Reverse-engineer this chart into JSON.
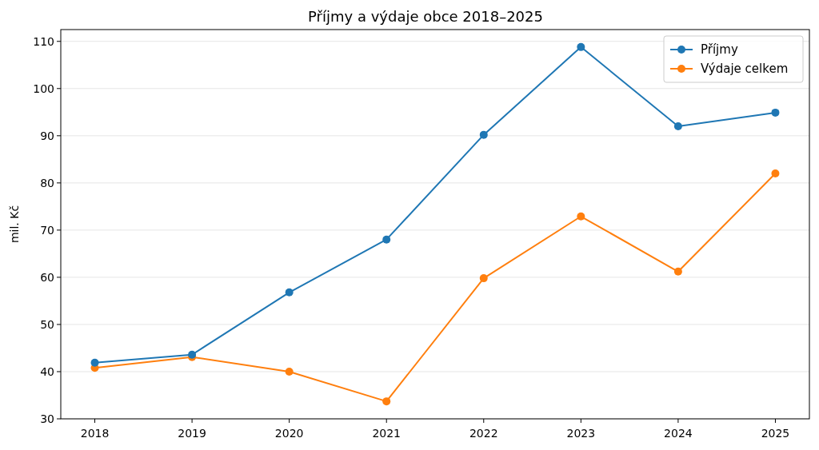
{
  "chart_data": {
    "type": "line",
    "title": "Příjmy a výdaje obce 2018–2025",
    "ylabel": "mil. Kč",
    "categories": [
      "2018",
      "2019",
      "2020",
      "2021",
      "2022",
      "2023",
      "2024",
      "2025"
    ],
    "series": [
      {
        "name": "Příjmy",
        "color": "#1f77b4",
        "values": [
          41.9,
          43.6,
          56.8,
          68.0,
          90.2,
          108.8,
          92.0,
          94.9
        ]
      },
      {
        "name": "Výdaje celkem",
        "color": "#ff7f0e",
        "values": [
          40.8,
          43.1,
          40.0,
          33.7,
          59.8,
          72.9,
          61.2,
          82.0
        ]
      }
    ],
    "ylim": [
      30,
      112.5
    ],
    "yticks": [
      30,
      40,
      50,
      60,
      70,
      80,
      90,
      100,
      110
    ],
    "grid": "y",
    "legend": "top right",
    "marker": "circle",
    "line_style": "solid"
  }
}
